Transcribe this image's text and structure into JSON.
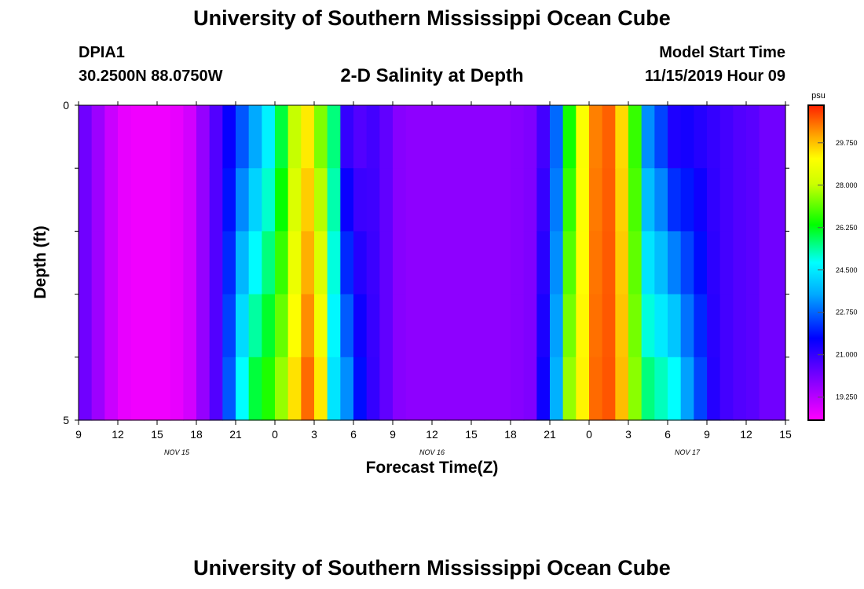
{
  "header": {
    "title": "University of Southern Mississippi Ocean Cube",
    "station_id": "DPIA1",
    "station_coords": "30.2500N 88.0750W",
    "plot_title": "2-D Salinity at Depth",
    "model_start_label": "Model Start Time",
    "model_start_value": "11/15/2019 Hour 09"
  },
  "footer": {
    "title": "University of Southern Mississippi Ocean Cube"
  },
  "chart_data": {
    "type": "heatmap",
    "title": "2-D Salinity at Depth",
    "xlabel": "Forecast Time(Z)",
    "ylabel": "Depth (ft)",
    "x_hours_range": [
      0,
      54
    ],
    "ylim": [
      0,
      5
    ],
    "y_tick_labels": [
      "0",
      "5"
    ],
    "x_tick_labels": [
      "9",
      "12",
      "15",
      "18",
      "21",
      "0",
      "3",
      "6",
      "9",
      "12",
      "15",
      "18",
      "21",
      "0",
      "3",
      "6",
      "9",
      "12",
      "15"
    ],
    "date_labels": [
      {
        "text": "NOV 15",
        "hour": 7.5
      },
      {
        "text": "NOV 16",
        "hour": 27
      },
      {
        "text": "NOV 17",
        "hour": 46.5
      }
    ],
    "colorbar": {
      "unit": "psu",
      "min": 18.3,
      "max": 31.3,
      "tick_labels": [
        "19.250",
        "21.000",
        "22.750",
        "24.500",
        "26.250",
        "28.000",
        "29.750"
      ]
    },
    "profile_columns": [
      {
        "t": 0,
        "top": 20.2,
        "bottom": 20.2
      },
      {
        "t": 1,
        "top": 19.6,
        "bottom": 19.6
      },
      {
        "t": 2,
        "top": 19.0,
        "bottom": 19.0
      },
      {
        "t": 3,
        "top": 18.6,
        "bottom": 18.6
      },
      {
        "t": 4,
        "top": 18.5,
        "bottom": 18.5
      },
      {
        "t": 5,
        "top": 18.5,
        "bottom": 18.5
      },
      {
        "t": 6,
        "top": 18.5,
        "bottom": 18.5
      },
      {
        "t": 7,
        "top": 18.6,
        "bottom": 18.6
      },
      {
        "t": 8,
        "top": 18.9,
        "bottom": 18.9
      },
      {
        "t": 9,
        "top": 19.7,
        "bottom": 19.7
      },
      {
        "t": 10,
        "top": 20.6,
        "bottom": 20.6
      },
      {
        "t": 11,
        "top": 21.6,
        "bottom": 22.6
      },
      {
        "t": 12,
        "top": 22.6,
        "bottom": 24.8
      },
      {
        "t": 13,
        "top": 23.5,
        "bottom": 26.0
      },
      {
        "t": 14,
        "top": 24.6,
        "bottom": 26.6
      },
      {
        "t": 15,
        "top": 26.0,
        "bottom": 27.6
      },
      {
        "t": 16,
        "top": 28.0,
        "bottom": 29.4
      },
      {
        "t": 17,
        "top": 29.3,
        "bottom": 30.6
      },
      {
        "t": 18,
        "top": 27.4,
        "bottom": 29.3
      },
      {
        "t": 19,
        "top": 25.6,
        "bottom": 24.4
      },
      {
        "t": 20,
        "top": 21.0,
        "bottom": 23.2
      },
      {
        "t": 21,
        "top": 20.6,
        "bottom": 21.8
      },
      {
        "t": 22,
        "top": 20.8,
        "bottom": 21.0
      },
      {
        "t": 23,
        "top": 20.4,
        "bottom": 20.4
      },
      {
        "t": 24,
        "top": 19.9,
        "bottom": 19.9
      },
      {
        "t": 25,
        "top": 19.8,
        "bottom": 19.8
      },
      {
        "t": 26,
        "top": 19.8,
        "bottom": 19.8
      },
      {
        "t": 27,
        "top": 19.8,
        "bottom": 19.8
      },
      {
        "t": 28,
        "top": 19.8,
        "bottom": 19.8
      },
      {
        "t": 29,
        "top": 19.8,
        "bottom": 19.8
      },
      {
        "t": 30,
        "top": 19.8,
        "bottom": 19.8
      },
      {
        "t": 31,
        "top": 19.8,
        "bottom": 19.8
      },
      {
        "t": 32,
        "top": 19.8,
        "bottom": 19.8
      },
      {
        "t": 33,
        "top": 19.9,
        "bottom": 19.9
      },
      {
        "t": 34,
        "top": 20.0,
        "bottom": 20.0
      },
      {
        "t": 35,
        "top": 20.8,
        "bottom": 21.5
      },
      {
        "t": 36,
        "top": 22.8,
        "bottom": 23.6
      },
      {
        "t": 37,
        "top": 26.5,
        "bottom": 27.6
      },
      {
        "t": 38,
        "top": 29.0,
        "bottom": 29.2
      },
      {
        "t": 39,
        "top": 30.4,
        "bottom": 30.6
      },
      {
        "t": 40,
        "top": 30.7,
        "bottom": 30.8
      },
      {
        "t": 41,
        "top": 29.5,
        "bottom": 29.8
      },
      {
        "t": 42,
        "top": 26.8,
        "bottom": 27.5
      },
      {
        "t": 43,
        "top": 23.2,
        "bottom": 25.6
      },
      {
        "t": 44,
        "top": 22.4,
        "bottom": 25.2
      },
      {
        "t": 45,
        "top": 21.3,
        "bottom": 24.8
      },
      {
        "t": 46,
        "top": 21.4,
        "bottom": 23.4
      },
      {
        "t": 47,
        "top": 21.2,
        "bottom": 22.4
      },
      {
        "t": 48,
        "top": 21.0,
        "bottom": 21.2
      },
      {
        "t": 49,
        "top": 20.8,
        "bottom": 20.8
      },
      {
        "t": 50,
        "top": 20.6,
        "bottom": 20.6
      },
      {
        "t": 51,
        "top": 20.5,
        "bottom": 20.5
      },
      {
        "t": 52,
        "top": 20.2,
        "bottom": 20.2
      },
      {
        "t": 53,
        "top": 20.2,
        "bottom": 20.2
      }
    ]
  }
}
